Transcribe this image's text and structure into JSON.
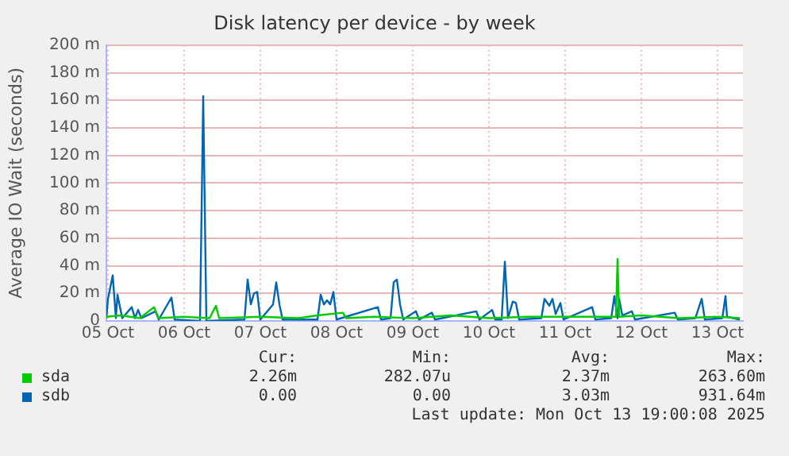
{
  "chart_data": {
    "type": "line",
    "title": "Disk latency per device - by week",
    "ylabel": "Average IO Wait (seconds)",
    "xlim": [
      "2025-10-05T11:30",
      "2025-10-13T20:00"
    ],
    "xticks": [
      {
        "value": "2025-10-05T12:00",
        "label": "05 Oct"
      },
      {
        "value": "2025-10-06T12:00",
        "label": "06 Oct"
      },
      {
        "value": "2025-10-07T12:00",
        "label": "07 Oct"
      },
      {
        "value": "2025-10-08T12:00",
        "label": "08 Oct"
      },
      {
        "value": "2025-10-09T12:00",
        "label": "09 Oct"
      },
      {
        "value": "2025-10-10T12:00",
        "label": "10 Oct"
      },
      {
        "value": "2025-10-11T12:00",
        "label": "11 Oct"
      },
      {
        "value": "2025-10-12T12:00",
        "label": "12 Oct"
      },
      {
        "value": "2025-10-13T12:00",
        "label": "13 Oct"
      }
    ],
    "ylim": [
      0,
      200
    ],
    "yticks": [
      0,
      {
        "value": 20,
        "label": "20 m"
      },
      {
        "value": 40,
        "label": "40 m"
      },
      {
        "value": 60,
        "label": "60 m"
      },
      {
        "value": 80,
        "label": "80 m"
      },
      {
        "value": 100,
        "label": "100 m"
      },
      {
        "value": 120,
        "label": "120 m"
      },
      {
        "value": 140,
        "label": "140 m"
      },
      {
        "value": 160,
        "label": "160 m"
      },
      {
        "value": 180,
        "label": "180 m"
      },
      {
        "value": 200,
        "label": "200 m"
      }
    ],
    "grid": true,
    "legend": "bottom",
    "marker": "none",
    "line_style": "solid",
    "series": [
      {
        "name": "sda",
        "color": "#00cc00",
        "x": [
          "2025-10-05T11:30",
          "2025-10-05T16:00",
          "2025-10-05T22:00",
          "2025-10-06T02:30",
          "2025-10-06T04:00",
          "2025-10-06T12:00",
          "2025-10-06T20:00",
          "2025-10-06T22:00",
          "2025-10-06T23:00",
          "2025-10-07T12:00",
          "2025-10-08T00:00",
          "2025-10-08T06:00",
          "2025-10-08T14:00",
          "2025-10-08T15:00",
          "2025-10-09T00:00",
          "2025-10-09T12:00",
          "2025-10-10T00:00",
          "2025-10-10T12:00",
          "2025-10-11T00:00",
          "2025-10-11T12:00",
          "2025-10-12T04:00",
          "2025-10-12T04:30",
          "2025-10-12T05:00",
          "2025-10-12T12:00",
          "2025-10-13T00:00",
          "2025-10-13T12:00",
          "2025-10-13T19:00"
        ],
        "values": [
          3,
          4,
          2,
          10,
          2,
          3,
          2,
          11,
          2,
          3,
          2,
          4,
          6,
          2,
          3,
          2,
          4,
          2,
          3,
          3,
          3,
          45,
          3,
          4,
          2,
          3,
          2
        ]
      },
      {
        "name": "sdb",
        "color": "#0066b3",
        "x": [
          "2025-10-05T11:30",
          "2025-10-05T12:00",
          "2025-10-05T13:30",
          "2025-10-05T14:30",
          "2025-10-05T15:00",
          "2025-10-05T16:30",
          "2025-10-05T19:30",
          "2025-10-05T20:30",
          "2025-10-05T21:30",
          "2025-10-05T22:30",
          "2025-10-06T03:00",
          "2025-10-06T04:00",
          "2025-10-06T08:00",
          "2025-10-06T09:00",
          "2025-10-06T17:00",
          "2025-10-06T18:00",
          "2025-10-06T19:00",
          "2025-10-07T07:00",
          "2025-10-07T08:00",
          "2025-10-07T09:00",
          "2025-10-07T10:00",
          "2025-10-07T11:00",
          "2025-10-07T12:00",
          "2025-10-07T16:00",
          "2025-10-07T17:00",
          "2025-10-07T18:00",
          "2025-10-07T19:00",
          "2025-10-08T06:00",
          "2025-10-08T07:00",
          "2025-10-08T08:00",
          "2025-10-08T09:00",
          "2025-10-08T10:00",
          "2025-10-08T11:00",
          "2025-10-08T12:00",
          "2025-10-09T01:00",
          "2025-10-09T02:00",
          "2025-10-09T05:00",
          "2025-10-09T06:00",
          "2025-10-09T07:00",
          "2025-10-09T08:00",
          "2025-10-09T09:00",
          "2025-10-09T13:00",
          "2025-10-09T14:00",
          "2025-10-09T18:00",
          "2025-10-09T19:00",
          "2025-10-10T08:00",
          "2025-10-10T09:00",
          "2025-10-10T13:00",
          "2025-10-10T14:00",
          "2025-10-10T16:00",
          "2025-10-10T17:00",
          "2025-10-10T18:00",
          "2025-10-10T19:30",
          "2025-10-10T20:30",
          "2025-10-10T21:30",
          "2025-10-11T04:30",
          "2025-10-11T05:30",
          "2025-10-11T07:00",
          "2025-10-11T08:00",
          "2025-10-11T09:00",
          "2025-10-11T10:30",
          "2025-10-11T11:30",
          "2025-10-11T20:30",
          "2025-10-11T21:30",
          "2025-10-12T02:30",
          "2025-10-12T03:30",
          "2025-10-12T04:30",
          "2025-10-12T05:00",
          "2025-10-12T06:00",
          "2025-10-12T09:00",
          "2025-10-12T10:00",
          "2025-10-12T22:30",
          "2025-10-12T23:30",
          "2025-10-13T05:00",
          "2025-10-13T07:00",
          "2025-10-13T08:00",
          "2025-10-13T13:30",
          "2025-10-13T14:30",
          "2025-10-13T15:00",
          "2025-10-13T19:00"
        ],
        "values": [
          2,
          16,
          33,
          2,
          19,
          2,
          10,
          2,
          8,
          2,
          7,
          1,
          17,
          1,
          0,
          163,
          0,
          1,
          30,
          12,
          20,
          21,
          1,
          12,
          28,
          12,
          1,
          1,
          19,
          12,
          15,
          12,
          21,
          1,
          10,
          1,
          2,
          28,
          30,
          12,
          1,
          7,
          1,
          6,
          1,
          7,
          1,
          8,
          1,
          1,
          43,
          2,
          14,
          13,
          1,
          2,
          16,
          11,
          16,
          5,
          13,
          1,
          10,
          1,
          2,
          18,
          2,
          16,
          4,
          7,
          1,
          6,
          1,
          2,
          16,
          1,
          2,
          18,
          3,
          1
        ]
      }
    ],
    "annotations": [
      "Cur:",
      "Min:",
      "Avg:",
      "Max:",
      "2.26m",
      "282.07u",
      "2.37m",
      "263.60m",
      "0.00",
      "0.00",
      "3.03m",
      "931.64m",
      "Last update: Mon Oct 13 19:00:08 2025"
    ]
  }
}
